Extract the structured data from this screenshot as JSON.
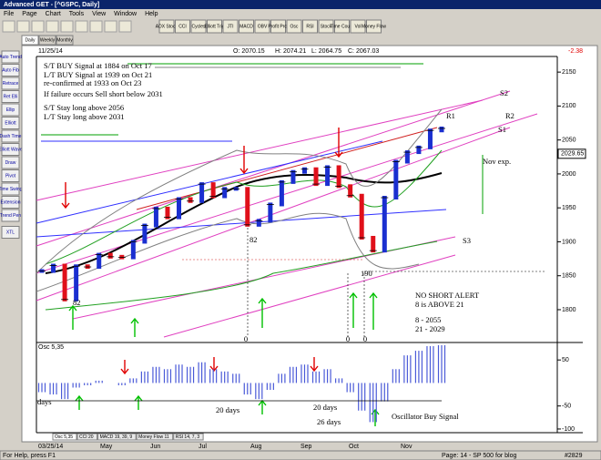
{
  "window": {
    "title": "Advanced GET - [^GSPC, Daily]"
  },
  "menu": [
    "File",
    "Page",
    "Chart",
    "Tools",
    "View",
    "Window",
    "Help"
  ],
  "toolbar": [
    "ADX Stoch",
    "CCI",
    "Cycles",
    "Elliott Trig",
    "JTI",
    "MACD",
    "OBV",
    "Profit Prof",
    "Osc",
    "RSI",
    "Stock",
    "Time Count",
    "Vol",
    "Money Flow"
  ],
  "left_toolbar": [
    "Auto Trend",
    "Auto Fib",
    "Retrace",
    "Ret Elli",
    "Ellip",
    "Elliott",
    "Dash Time",
    "Elliott Wave",
    "Draw",
    "Pivot",
    "Time Swing",
    "Extension",
    "Trend Pen",
    "XTL"
  ],
  "period_tabs": [
    "Daily",
    "Weekly",
    "Monthly"
  ],
  "chart_header": {
    "date": "11/25/14",
    "open": "O: 2070.15",
    "high": "H: 2074.21",
    "low": "L: 2064.75",
    "close": "C: 2067.03",
    "change": "-2.38"
  },
  "chart": {
    "type": "bar",
    "ylim": [
      1753,
      2173
    ],
    "yticks": [
      1800,
      1850,
      1900,
      1950,
      2000,
      2050,
      2100,
      2150
    ],
    "last_price": 2029.65,
    "price": {
      "values": [
        1857,
        1865,
        1815,
        1864,
        1863,
        1881,
        1878,
        1877,
        1900,
        1924,
        1949,
        1936,
        1963,
        1960,
        1985,
        1967,
        1978,
        1978,
        1925,
        1931,
        1955,
        1988,
        2003,
        2007,
        1985,
        2010,
        1982,
        1968,
        1906,
        1887,
        1965,
        2018,
        2032,
        2039,
        2064,
        2067
      ],
      "up_color": "#1a2fd0",
      "down_color": "#e0101a"
    },
    "x_labels": [
      "03/25/14",
      "May",
      "Jun",
      "Jul",
      "Aug",
      "Sep",
      "Oct",
      "Nov"
    ],
    "oscillator": {
      "name": "Osc 5,35",
      "ylim": [
        -108,
        84
      ],
      "yticks": [
        50,
        -50,
        -100
      ],
      "color": "#4a5ad8",
      "values": [
        -20,
        -25,
        -35,
        -10,
        -5,
        5,
        0,
        -5,
        10,
        25,
        35,
        30,
        40,
        35,
        45,
        30,
        25,
        20,
        -25,
        -35,
        -15,
        20,
        35,
        40,
        25,
        30,
        10,
        -20,
        -60,
        -85,
        -40,
        30,
        60,
        70,
        80,
        82
      ]
    }
  },
  "annotations": {
    "st_buy": "S/T BUY Signal at 1884 on Oct 17",
    "lt_buy": "L/T BUY Signal at 1939 on Oct 21",
    "reconfirmed": "re-confirmed at 1933 on Oct 23",
    "failure": "If failure occurs Sell short below 2031",
    "st_stay": "S/T Stay long above 2056",
    "lt_stay": "L/T Stay long above 2031",
    "s2": "S2",
    "r1": "R1",
    "r2": "R2",
    "s1": "S1",
    "s3": "S3",
    "nov_exp": "Nov exp.",
    "low_82a": "82",
    "low_82b": "82",
    "low_190": "190",
    "no_short": "NO SHORT ALERT",
    "above": "8 is ABOVE 21",
    "ma8": "8   - 2055",
    "ma21": "21  - 2029",
    "zero_a": "0",
    "zero_b": "0",
    "zero_c": "0",
    "days": "days",
    "days20a": "20 days",
    "days20b": "20 days",
    "days26": "26 days",
    "osc_buy": "Oscillator Buy Signal"
  },
  "indicator_tabs": [
    "Osc 5,35",
    "CCI 20",
    "MACD 19, 39, 9",
    "Money Flow 11",
    "RSI 14, 7, 3"
  ],
  "status": {
    "help": "For Help, press F1",
    "page": "Page: 14 - SP 500 for blog",
    "count": "#2829"
  }
}
